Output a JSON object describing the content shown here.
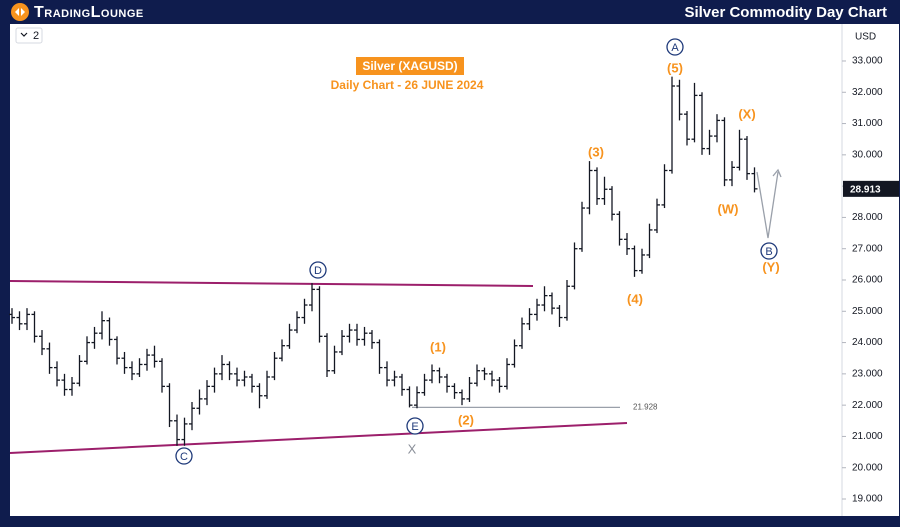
{
  "brand": "TradingLounge",
  "header_title": "Silver Commodity Day Chart",
  "toolbar_label": "2",
  "chart_data": {
    "type": "ohlc",
    "title": "Silver (XAGUSD)",
    "subtitle": "Daily Chart - 26 JUNE 2024",
    "currency": "USD",
    "color": "#131722",
    "ylim": [
      18.457,
      34.182
    ],
    "yticks": [
      {
        "value": 19,
        "label": "19.000"
      },
      {
        "value": 20,
        "label": "20.000"
      },
      {
        "value": 21,
        "label": "21.000"
      },
      {
        "value": 22,
        "label": "22.000"
      },
      {
        "value": 23,
        "label": "23.000"
      },
      {
        "value": 24,
        "label": "24.000"
      },
      {
        "value": 25,
        "label": "25.000"
      },
      {
        "value": 26,
        "label": "26.000"
      },
      {
        "value": 27,
        "label": "27.000"
      },
      {
        "value": 28,
        "label": "28.000"
      },
      {
        "value": 29,
        "label": "29.000"
      },
      {
        "value": 30,
        "label": "30.000"
      },
      {
        "value": 31,
        "label": "31.000"
      },
      {
        "value": 32,
        "label": "32.000"
      },
      {
        "value": 33,
        "label": "33.000"
      }
    ],
    "last_price": 28.913,
    "support_level": 21.928,
    "annotations": [
      "A",
      "(5)",
      "(X)",
      "(3)",
      "(W)",
      "B",
      "(Y)",
      "(4)",
      "D",
      "(1)",
      "(2)",
      "E",
      "X",
      "C"
    ],
    "ohlc": [
      [
        24.9,
        25.1,
        24.6,
        24.8
      ],
      [
        24.8,
        25.0,
        24.4,
        24.6
      ],
      [
        24.6,
        25.1,
        24.4,
        24.9
      ],
      [
        24.9,
        25.0,
        24.0,
        24.2
      ],
      [
        24.2,
        24.4,
        23.6,
        23.8
      ],
      [
        23.8,
        24.0,
        23.0,
        23.2
      ],
      [
        23.2,
        23.4,
        22.6,
        22.8
      ],
      [
        22.8,
        23.0,
        22.3,
        22.5
      ],
      [
        22.5,
        22.9,
        22.3,
        22.7
      ],
      [
        22.7,
        23.6,
        22.6,
        23.4
      ],
      [
        23.4,
        24.2,
        23.3,
        24.0
      ],
      [
        24.0,
        24.5,
        23.8,
        24.3
      ],
      [
        24.3,
        25.0,
        24.1,
        24.7
      ],
      [
        24.7,
        24.8,
        23.9,
        24.1
      ],
      [
        24.1,
        24.2,
        23.3,
        23.5
      ],
      [
        23.5,
        23.7,
        23.0,
        23.2
      ],
      [
        23.2,
        23.4,
        22.8,
        23.0
      ],
      [
        23.0,
        23.5,
        22.9,
        23.3
      ],
      [
        23.3,
        23.8,
        23.1,
        23.6
      ],
      [
        23.6,
        23.9,
        23.2,
        23.4
      ],
      [
        23.4,
        23.5,
        22.4,
        22.6
      ],
      [
        22.6,
        22.7,
        21.3,
        21.5
      ],
      [
        21.5,
        21.7,
        20.7,
        20.9
      ],
      [
        20.9,
        21.6,
        20.7,
        21.4
      ],
      [
        21.4,
        22.1,
        21.2,
        21.9
      ],
      [
        21.9,
        22.5,
        21.7,
        22.2
      ],
      [
        22.2,
        22.8,
        22.0,
        22.6
      ],
      [
        22.6,
        23.2,
        22.4,
        23.0
      ],
      [
        23.0,
        23.6,
        22.8,
        23.3
      ],
      [
        23.3,
        23.4,
        22.8,
        23.0
      ],
      [
        23.0,
        23.2,
        22.6,
        22.8
      ],
      [
        22.8,
        23.1,
        22.6,
        22.9
      ],
      [
        22.9,
        23.0,
        22.4,
        22.6
      ],
      [
        22.6,
        22.7,
        21.9,
        22.3
      ],
      [
        22.3,
        23.1,
        22.2,
        22.9
      ],
      [
        22.9,
        23.7,
        22.8,
        23.5
      ],
      [
        23.5,
        24.1,
        23.4,
        23.9
      ],
      [
        23.9,
        24.6,
        23.8,
        24.4
      ],
      [
        24.4,
        25.0,
        24.3,
        24.8
      ],
      [
        24.8,
        25.4,
        24.6,
        25.2
      ],
      [
        25.2,
        25.9,
        25.0,
        25.7
      ],
      [
        25.7,
        25.8,
        24.0,
        24.2
      ],
      [
        24.2,
        24.3,
        22.9,
        23.1
      ],
      [
        23.1,
        23.9,
        23.0,
        23.7
      ],
      [
        23.7,
        24.4,
        23.6,
        24.2
      ],
      [
        24.2,
        24.6,
        24.0,
        24.4
      ],
      [
        24.4,
        24.6,
        23.9,
        24.1
      ],
      [
        24.1,
        24.5,
        23.9,
        24.3
      ],
      [
        24.3,
        24.4,
        23.8,
        24.0
      ],
      [
        24.0,
        24.1,
        23.0,
        23.2
      ],
      [
        23.2,
        23.4,
        22.6,
        22.8
      ],
      [
        22.8,
        23.1,
        22.6,
        22.9
      ],
      [
        22.9,
        23.0,
        22.3,
        22.5
      ],
      [
        22.5,
        22.6,
        21.928,
        22.0
      ],
      [
        22.0,
        22.6,
        21.9,
        22.4
      ],
      [
        22.4,
        23.0,
        22.3,
        22.8
      ],
      [
        22.8,
        23.3,
        22.7,
        23.1
      ],
      [
        23.1,
        23.2,
        22.7,
        22.9
      ],
      [
        22.9,
        23.0,
        22.4,
        22.6
      ],
      [
        22.6,
        22.7,
        22.2,
        22.4
      ],
      [
        22.4,
        22.5,
        22.0,
        22.2
      ],
      [
        22.2,
        22.9,
        22.1,
        22.7
      ],
      [
        22.7,
        23.3,
        22.6,
        23.1
      ],
      [
        23.1,
        23.2,
        22.8,
        23.0
      ],
      [
        23.0,
        23.1,
        22.6,
        22.8
      ],
      [
        22.8,
        22.9,
        22.4,
        22.6
      ],
      [
        22.6,
        23.5,
        22.5,
        23.3
      ],
      [
        23.3,
        24.1,
        23.2,
        23.9
      ],
      [
        23.9,
        24.8,
        23.8,
        24.6
      ],
      [
        24.6,
        25.1,
        24.4,
        24.9
      ],
      [
        24.9,
        25.4,
        24.7,
        25.2
      ],
      [
        25.2,
        25.8,
        25.0,
        25.5
      ],
      [
        25.5,
        25.6,
        24.9,
        25.1
      ],
      [
        25.1,
        25.2,
        24.5,
        24.8
      ],
      [
        24.8,
        26.0,
        24.7,
        25.8
      ],
      [
        25.8,
        27.2,
        25.7,
        27.0
      ],
      [
        27.0,
        28.5,
        26.9,
        28.3
      ],
      [
        28.3,
        29.8,
        28.1,
        29.5
      ],
      [
        29.5,
        29.6,
        28.4,
        28.6
      ],
      [
        28.6,
        29.3,
        28.4,
        28.9
      ],
      [
        28.9,
        29.0,
        27.9,
        28.1
      ],
      [
        28.1,
        28.2,
        27.1,
        27.3
      ],
      [
        27.3,
        27.5,
        26.8,
        27.0
      ],
      [
        27.0,
        27.1,
        26.1,
        26.3
      ],
      [
        26.3,
        27.0,
        26.2,
        26.8
      ],
      [
        26.8,
        27.8,
        26.7,
        27.6
      ],
      [
        27.6,
        28.6,
        27.5,
        28.4
      ],
      [
        28.4,
        29.7,
        28.3,
        29.5
      ],
      [
        29.5,
        32.5,
        29.4,
        32.2
      ],
      [
        32.2,
        32.4,
        31.1,
        31.3
      ],
      [
        31.3,
        31.4,
        30.3,
        30.5
      ],
      [
        30.5,
        32.3,
        30.4,
        31.9
      ],
      [
        31.9,
        32.0,
        30.0,
        30.2
      ],
      [
        30.2,
        30.8,
        30.0,
        30.6
      ],
      [
        30.6,
        31.3,
        30.4,
        31.1
      ],
      [
        31.1,
        31.2,
        29.0,
        29.2
      ],
      [
        29.2,
        29.8,
        29.0,
        29.6
      ],
      [
        29.6,
        30.8,
        29.5,
        30.5
      ],
      [
        30.5,
        30.6,
        29.2,
        29.4
      ],
      [
        29.4,
        29.6,
        28.8,
        28.913
      ]
    ]
  }
}
